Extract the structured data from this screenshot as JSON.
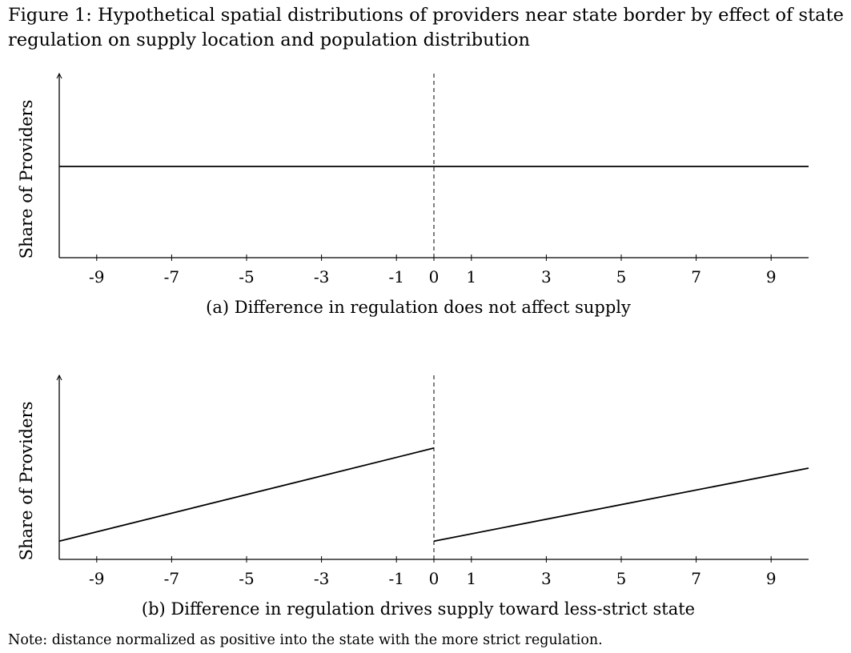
{
  "figure": {
    "title": "Figure 1: Hypothetical spatial distributions of providers near state border by effect of state regulation on supply location and population distribution",
    "note": "Note: distance normalized as positive into the state with the more strict regulation."
  },
  "chart_data": [
    {
      "type": "line",
      "caption": "(a) Difference in regulation does not affect supply",
      "ylabel": "Share of Providers",
      "xlabel": "",
      "xlim": [
        -10,
        10
      ],
      "ylim": [
        0,
        1
      ],
      "xticks": [
        -9,
        -7,
        -5,
        -3,
        -1,
        0,
        1,
        3,
        5,
        7,
        9
      ],
      "xtick_labels": [
        "-9",
        "-7",
        "-5",
        "-3",
        "-1",
        "0",
        "1",
        "3",
        "5",
        "7",
        "9"
      ],
      "border_x": 0,
      "series": [
        {
          "x": [
            -10,
            0
          ],
          "y": [
            0.5,
            0.5
          ]
        },
        {
          "x": [
            0,
            10
          ],
          "y": [
            0.5,
            0.5
          ]
        }
      ]
    },
    {
      "type": "line",
      "caption": "(b) Difference in regulation drives supply toward less-strict state",
      "ylabel": "Share of Providers",
      "xlabel": "",
      "xlim": [
        -10,
        10
      ],
      "ylim": [
        0,
        1
      ],
      "xticks": [
        -9,
        -7,
        -5,
        -3,
        -1,
        0,
        1,
        3,
        5,
        7,
        9
      ],
      "xtick_labels": [
        "-9",
        "-7",
        "-5",
        "-3",
        "-1",
        "0",
        "1",
        "3",
        "5",
        "7",
        "9"
      ],
      "border_x": 0,
      "series": [
        {
          "x": [
            -10,
            0
          ],
          "y": [
            0.1,
            0.61
          ]
        },
        {
          "x": [
            0,
            10
          ],
          "y": [
            0.1,
            0.5
          ]
        }
      ]
    }
  ]
}
